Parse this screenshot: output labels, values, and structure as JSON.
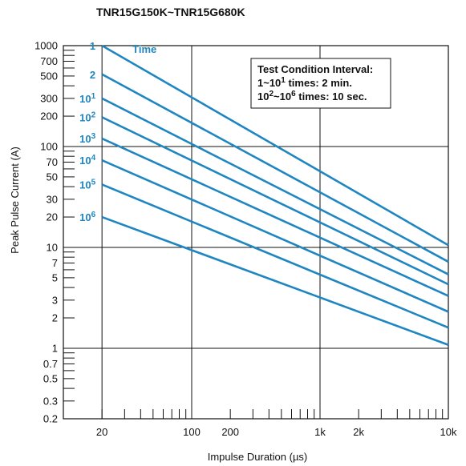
{
  "chart_data": {
    "type": "line",
    "title": "TNR15G150K~TNR15G680K",
    "xlabel": "Impulse Duration (µs)",
    "ylabel": "Peak Pulse Current (A)",
    "x_scale": "log",
    "y_scale": "log",
    "xlim": [
      10,
      10000
    ],
    "ylim": [
      0.2,
      1000
    ],
    "x_tick_labels": [
      {
        "value": 20,
        "label": "20"
      },
      {
        "value": 100,
        "label": "100"
      },
      {
        "value": 200,
        "label": "200"
      },
      {
        "value": 1000,
        "label": "1k"
      },
      {
        "value": 2000,
        "label": "2k"
      },
      {
        "value": 10000,
        "label": "10k"
      }
    ],
    "y_tick_labels": [
      {
        "value": 1000,
        "label": "1000"
      },
      {
        "value": 700,
        "label": "700"
      },
      {
        "value": 500,
        "label": "500"
      },
      {
        "value": 300,
        "label": "300"
      },
      {
        "value": 200,
        "label": "200"
      },
      {
        "value": 100,
        "label": "100"
      },
      {
        "value": 70,
        "label": "70"
      },
      {
        "value": 50,
        "label": "50"
      },
      {
        "value": 30,
        "label": "30"
      },
      {
        "value": 20,
        "label": "20"
      },
      {
        "value": 10,
        "label": "10"
      },
      {
        "value": 7,
        "label": "7"
      },
      {
        "value": 5,
        "label": "5"
      },
      {
        "value": 3,
        "label": "3"
      },
      {
        "value": 2,
        "label": "2"
      },
      {
        "value": 1,
        "label": "1"
      },
      {
        "value": 0.7,
        "label": "0.7"
      },
      {
        "value": 0.5,
        "label": "0.5"
      },
      {
        "value": 0.3,
        "label": "0.3"
      },
      {
        "value": 0.2,
        "label": "0.2"
      }
    ],
    "series": [
      {
        "name": "1",
        "color": "#1f86c1",
        "points": [
          [
            20,
            1000
          ],
          [
            10000,
            10.5
          ]
        ]
      },
      {
        "name": "2",
        "color": "#1f86c1",
        "points": [
          [
            20,
            520
          ],
          [
            10000,
            7.2
          ]
        ]
      },
      {
        "name": "10^1",
        "color": "#1f86c1",
        "points": [
          [
            20,
            300
          ],
          [
            10000,
            5.4
          ]
        ]
      },
      {
        "name": "10^2",
        "color": "#1f86c1",
        "points": [
          [
            20,
            195
          ],
          [
            10000,
            4.3
          ]
        ]
      },
      {
        "name": "10^3",
        "color": "#1f86c1",
        "points": [
          [
            20,
            120
          ],
          [
            10000,
            3.3
          ]
        ]
      },
      {
        "name": "10^4",
        "color": "#1f86c1",
        "points": [
          [
            20,
            73
          ],
          [
            10000,
            2.3
          ]
        ]
      },
      {
        "name": "10^5",
        "color": "#1f86c1",
        "points": [
          [
            20,
            42
          ],
          [
            10000,
            1.6
          ]
        ]
      },
      {
        "name": "10^6",
        "color": "#1f86c1",
        "points": [
          [
            20,
            20
          ],
          [
            10000,
            1.08
          ]
        ]
      }
    ],
    "series_header": "Time",
    "note_lines": [
      {
        "text": "Test Condition Interval:"
      },
      {
        "pre": "1~10",
        "sup": "1",
        "post": " times: 2 min."
      },
      {
        "pre": "10",
        "sup": "2",
        "mid": "~10",
        "sup2": "6",
        "post": " times: 10 sec."
      }
    ],
    "major_grid": true
  }
}
